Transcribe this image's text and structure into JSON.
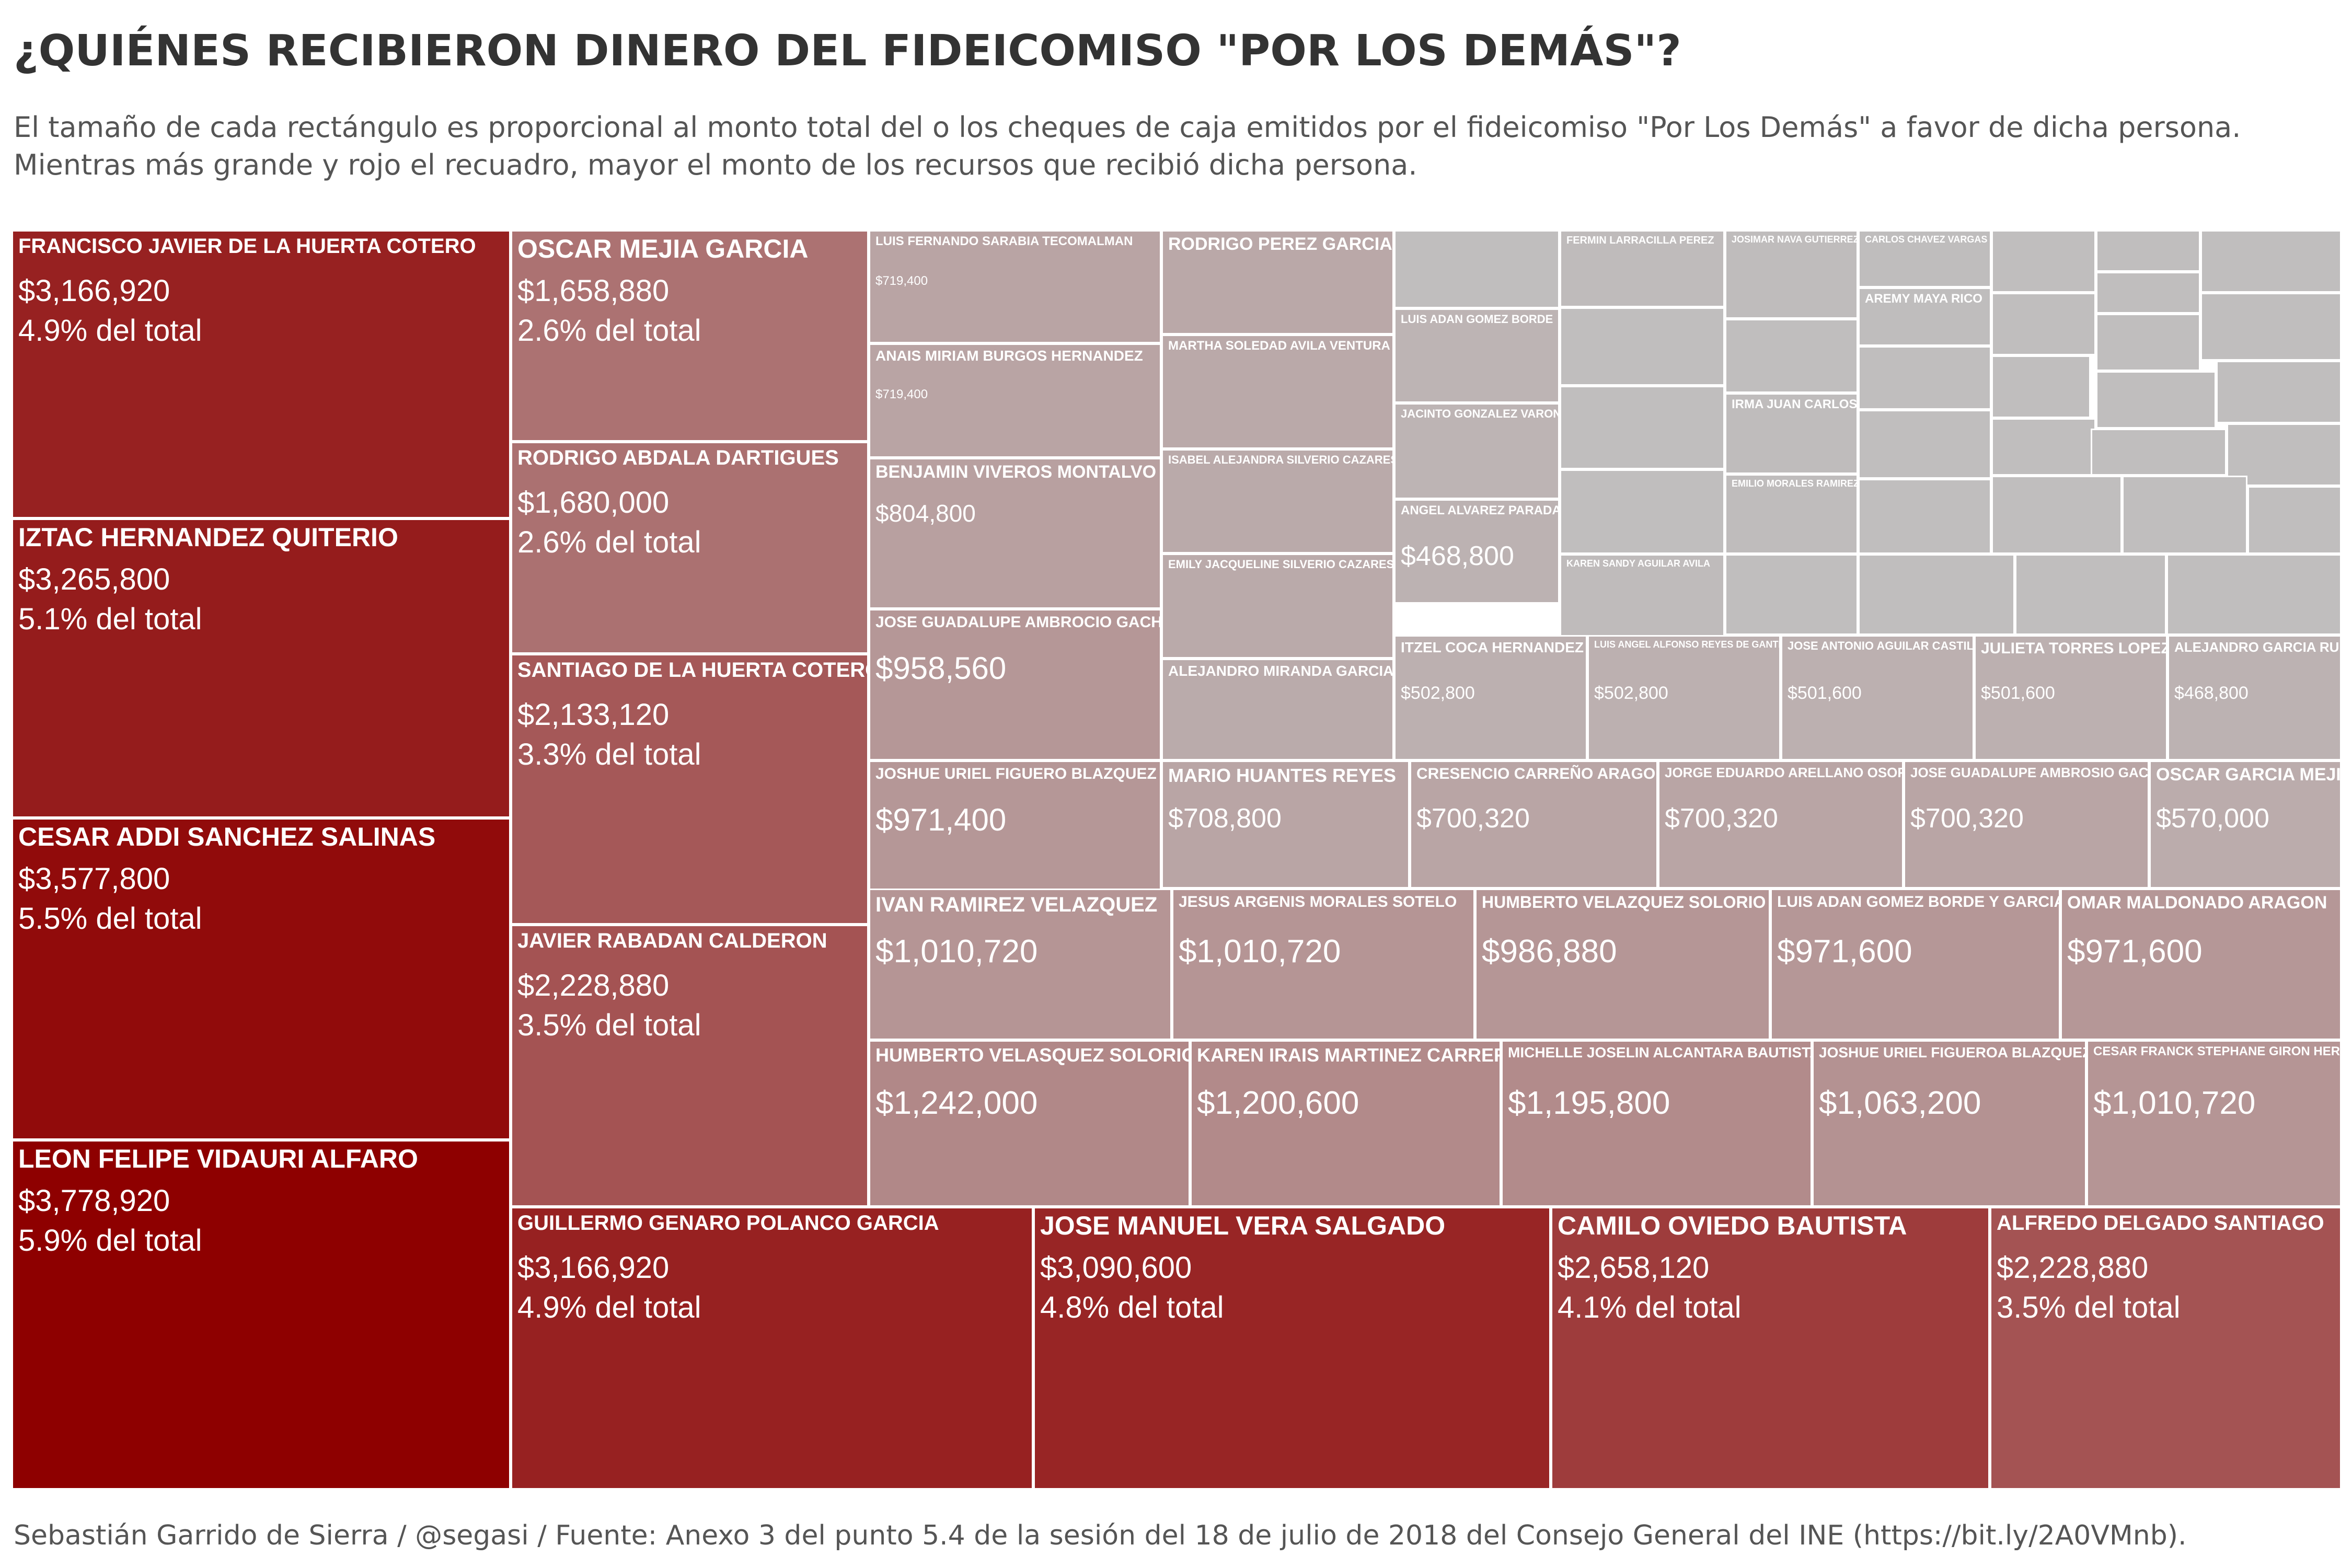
{
  "title": "¿QUIÉNES RECIBIERON DINERO DEL FIDEICOMISO \"POR LOS DEMÁS\"?",
  "subtitle": [
    "El tamaño de cada rectángulo es proporcional al monto total del o los cheques de caja emitidos por el fideicomiso \"Por Los Demás\" a favor de dicha persona.",
    "Mientras más grande y rojo el recuadro, mayor el monto de los recursos que recibió dicha persona."
  ],
  "caption": "Sebastián Garrido de Sierra / @segasi / Fuente: Anexo 3 del punto 5.4 de la sesión del 18 de julio de 2018 del Consejo General del INE (https://bit.ly/2A0VMnb).",
  "chart_data": {
    "type": "treemap",
    "value_unit": "MXN",
    "pct_suffix": " del total",
    "color_scale": {
      "low": "#c0c0c0",
      "high": "#8e0000"
    },
    "items": [
      {
        "name": "FRANCISCO JAVIER DE LA HUERTA COTERO",
        "amount": "$3,166,920",
        "pct": "4.9%",
        "value": 3166920
      },
      {
        "name": "IZTAC HERNANDEZ QUITERIO",
        "amount": "$3,265,800",
        "pct": "5.1%",
        "value": 3265800
      },
      {
        "name": "CESAR ADDI SANCHEZ SALINAS",
        "amount": "$3,577,800",
        "pct": "5.5%",
        "value": 3577800
      },
      {
        "name": "LEON FELIPE VIDAURI ALFARO",
        "amount": "$3,778,920",
        "pct": "5.9%",
        "value": 3778920
      },
      {
        "name": "OSCAR MEJIA GARCIA",
        "amount": "$1,658,880",
        "pct": "2.6%",
        "value": 1658880
      },
      {
        "name": "RODRIGO ABDALA DARTIGUES",
        "amount": "$1,680,000",
        "pct": "2.6%",
        "value": 1680000
      },
      {
        "name": "SANTIAGO DE LA HUERTA COTERO",
        "amount": "$2,133,120",
        "pct": "3.3%",
        "value": 2133120
      },
      {
        "name": "JAVIER RABADAN CALDERON",
        "amount": "$2,228,880",
        "pct": "3.5%",
        "value": 2228880
      },
      {
        "name": "GUILLERMO GENARO POLANCO GARCIA",
        "amount": "$3,166,920",
        "pct": "4.9%",
        "value": 3166920
      },
      {
        "name": "JOSE MANUEL VERA SALGADO",
        "amount": "$3,090,600",
        "pct": "4.8%",
        "value": 3090600
      },
      {
        "name": "CAMILO OVIEDO BAUTISTA",
        "amount": "$2,658,120",
        "pct": "4.1%",
        "value": 2658120
      },
      {
        "name": "ALFREDO DELGADO SANTIAGO",
        "amount": "$2,228,880",
        "pct": "3.5%",
        "value": 2228880
      },
      {
        "name": "LUIS FERNANDO SARABIA TECOMALMAN",
        "amount": "$719,400",
        "value": 719400
      },
      {
        "name": "ANAIS MIRIAM BURGOS HERNANDEZ",
        "amount": "$719,400",
        "value": 719400
      },
      {
        "name": "BENJAMIN VIVEROS MONTALVO",
        "amount": "$804,800",
        "value": 804800
      },
      {
        "name": "JOSE GUADALUPE AMBROCIO GACHUZ",
        "amount": "$958,560",
        "value": 958560
      },
      {
        "name": "JOSHUE URIEL FIGUERO BLAZQUEZ",
        "amount": "$971,400",
        "value": 971400
      },
      {
        "name": "RODRIGO PEREZ GARCIA",
        "value": 640000
      },
      {
        "name": "MARTHA SOLEDAD AVILA VENTURA",
        "value": 620000
      },
      {
        "name": "ISABEL ALEJANDRA SILVERIO CAZARES",
        "value": 610000
      },
      {
        "name": "EMILY JACQUELINE SILVERIO CAZARES",
        "value": 610000
      },
      {
        "name": "ALEJANDRO MIRANDA GARCIA",
        "value": 600000
      },
      {
        "name": "LUIS ADAN GOMEZ BORDE",
        "value": 420000
      },
      {
        "name": "JACINTO GONZALEZ VARONA",
        "value": 420000
      },
      {
        "name": "ANGEL ALVAREZ PARADA",
        "amount": "$468,800",
        "value": 468800
      },
      {
        "name": "FERMIN LARRACILLA PEREZ",
        "value": 300000
      },
      {
        "name": "KAREN SANDY AGUILAR AVILA",
        "value": 300000
      },
      {
        "name": "JOSIMAR NAVA GUTIERREZ",
        "value": 280000
      },
      {
        "name": "IRMA JUAN CARLOS",
        "value": 280000
      },
      {
        "name": "EMILIO MORALES RAMIREZ",
        "value": 280000
      },
      {
        "name": "CARLOS CHAVEZ VARGAS",
        "value": 250000
      },
      {
        "name": "AREMY MAYA RICO",
        "value": 250000
      },
      {
        "name": "ITZEL COCA HERNANDEZ",
        "amount": "$502,800",
        "value": 502800
      },
      {
        "name": "LUIS ANGEL ALFONSO REYES DE GANTE",
        "amount": "$502,800",
        "value": 502800
      },
      {
        "name": "JOSE ANTONIO AGUILAR CASTILLEJOS",
        "amount": "$501,600",
        "value": 501600
      },
      {
        "name": "JULIETA TORRES LOPEZ",
        "amount": "$501,600",
        "value": 501600
      },
      {
        "name": "ALEJANDRO GARCIA RUEDA",
        "amount": "$468,800",
        "value": 468800
      },
      {
        "name": "MARIO HUANTES REYES",
        "amount": "$708,800",
        "value": 708800
      },
      {
        "name": "CRESENCIO CARREÑO ARAGON",
        "amount": "$700,320",
        "value": 700320
      },
      {
        "name": "JORGE EDUARDO ARELLANO OSORIO",
        "amount": "$700,320",
        "value": 700320
      },
      {
        "name": "JOSE GUADALUPE AMBROSIO GACHUZ",
        "amount": "$700,320",
        "value": 700320
      },
      {
        "name": "OSCAR GARCIA MEJIA",
        "amount": "$570,000",
        "value": 570000
      },
      {
        "name": "IVAN RAMIREZ VELAZQUEZ",
        "amount": "$1,010,720",
        "value": 1010720
      },
      {
        "name": "JESUS ARGENIS MORALES SOTELO",
        "amount": "$1,010,720",
        "value": 1010720
      },
      {
        "name": "HUMBERTO VELAZQUEZ SOLORIO",
        "amount": "$986,880",
        "value": 986880
      },
      {
        "name": "LUIS ADAN GOMEZ BORDE Y GARCIA",
        "amount": "$971,600",
        "value": 971600
      },
      {
        "name": "OMAR MALDONADO ARAGON",
        "amount": "$971,600",
        "value": 971600
      },
      {
        "name": "HUMBERTO VELASQUEZ SOLORIO",
        "amount": "$1,242,000",
        "value": 1242000
      },
      {
        "name": "KAREN IRAIS MARTINEZ CARRERA",
        "amount": "$1,200,600",
        "value": 1200600
      },
      {
        "name": "MICHELLE JOSELIN ALCANTARA BAUTISTA",
        "amount": "$1,195,800",
        "value": 1195800
      },
      {
        "name": "JOSHUE URIEL FIGUEROA BLAZQUEZ",
        "amount": "$1,063,200",
        "value": 1063200
      },
      {
        "name": "CESAR FRANCK STEPHANE GIRON HERNANDEZ",
        "amount": "$1,010,720",
        "value": 1010720
      }
    ]
  }
}
